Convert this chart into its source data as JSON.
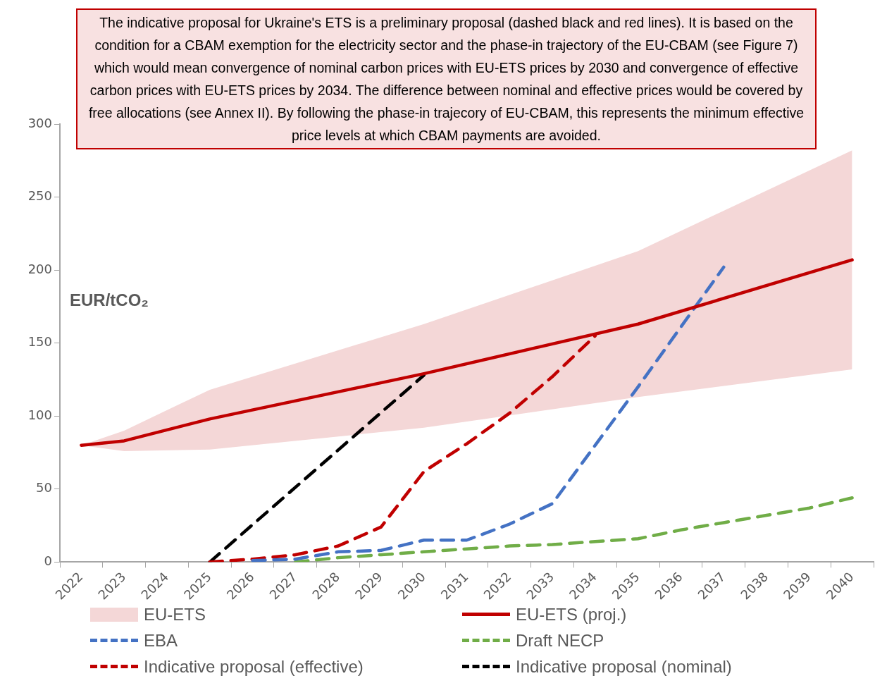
{
  "chart_data": {
    "type": "line",
    "ylabel": "EUR/tCO₂",
    "annotations": [
      "The indicative proposal for Ukraine's ETS is a preliminary proposal (dashed black and red lines). It is based on the condition for a CBAM exemption for the electricity sector and the phase-in trajectory of the EU-CBAM (see Figure 7) which would mean convergence of nominal carbon prices with EU-ETS prices by 2030 and convergence of effective carbon prices with EU-ETS prices by 2034. The difference between nominal and effective prices would be covered by free allocations (see Annex II). By following the phase-in trajecory of EU-CBAM, this represents the minimum effective price levels at which CBAM payments are avoided."
    ],
    "categories": [
      "2022",
      "2023",
      "2024",
      "2025",
      "2026",
      "2027",
      "2028",
      "2029",
      "2030",
      "2031",
      "2032",
      "2033",
      "2034",
      "2035",
      "2036",
      "2037",
      "2038",
      "2039",
      "2040"
    ],
    "ylim": [
      0,
      300
    ],
    "yticks": [
      0,
      50,
      100,
      150,
      200,
      250,
      300
    ],
    "grid": false,
    "legend": "bottom",
    "marker": "none",
    "series": [
      {
        "name": "EU-ETS",
        "type": "area",
        "color": "#f4d7d7",
        "values": [
          null,
          null,
          null,
          null,
          null,
          null,
          null,
          null,
          null,
          null,
          null,
          null,
          null,
          null,
          null,
          null,
          null,
          null,
          null
        ],
        "lower": [
          80,
          76,
          null,
          77,
          null,
          null,
          null,
          null,
          92,
          null,
          null,
          null,
          null,
          113,
          null,
          null,
          null,
          null,
          132
        ],
        "upper": [
          80,
          90,
          null,
          118,
          null,
          null,
          null,
          null,
          163,
          null,
          null,
          null,
          null,
          213,
          null,
          null,
          null,
          null,
          282
        ]
      },
      {
        "name": "EU-ETS (proj.)",
        "color": "#c00000",
        "line_style": "solid",
        "values": [
          80,
          83,
          null,
          98,
          null,
          null,
          null,
          null,
          129,
          null,
          null,
          null,
          null,
          163,
          null,
          null,
          null,
          null,
          207
        ]
      },
      {
        "name": "EBA",
        "color": "#4472c4",
        "line_style": "dashed",
        "values": [
          null,
          null,
          null,
          null,
          1,
          2,
          7,
          8,
          15,
          15,
          26,
          40,
          80,
          120,
          161,
          202,
          null,
          null,
          null
        ]
      },
      {
        "name": "Draft NECP",
        "color": "#70ad47",
        "line_style": "dashed",
        "values": [
          null,
          null,
          null,
          null,
          null,
          0,
          3,
          5,
          7,
          9,
          11,
          12,
          14,
          16,
          22,
          27,
          32,
          37,
          44
        ]
      },
      {
        "name": "Indicative proposal (effective)",
        "color": "#c00000",
        "line_style": "dashed",
        "values": [
          null,
          null,
          null,
          0,
          2,
          5,
          11,
          24,
          62,
          81,
          102,
          127,
          155,
          null,
          null,
          null,
          null,
          null,
          null
        ]
      },
      {
        "name": "Indicative proposal (nominal)",
        "color": "#000000",
        "line_style": "dashed",
        "values": [
          null,
          null,
          null,
          0,
          null,
          null,
          null,
          null,
          128,
          null,
          null,
          null,
          null,
          null,
          null,
          null,
          null,
          null,
          null
        ]
      }
    ]
  }
}
